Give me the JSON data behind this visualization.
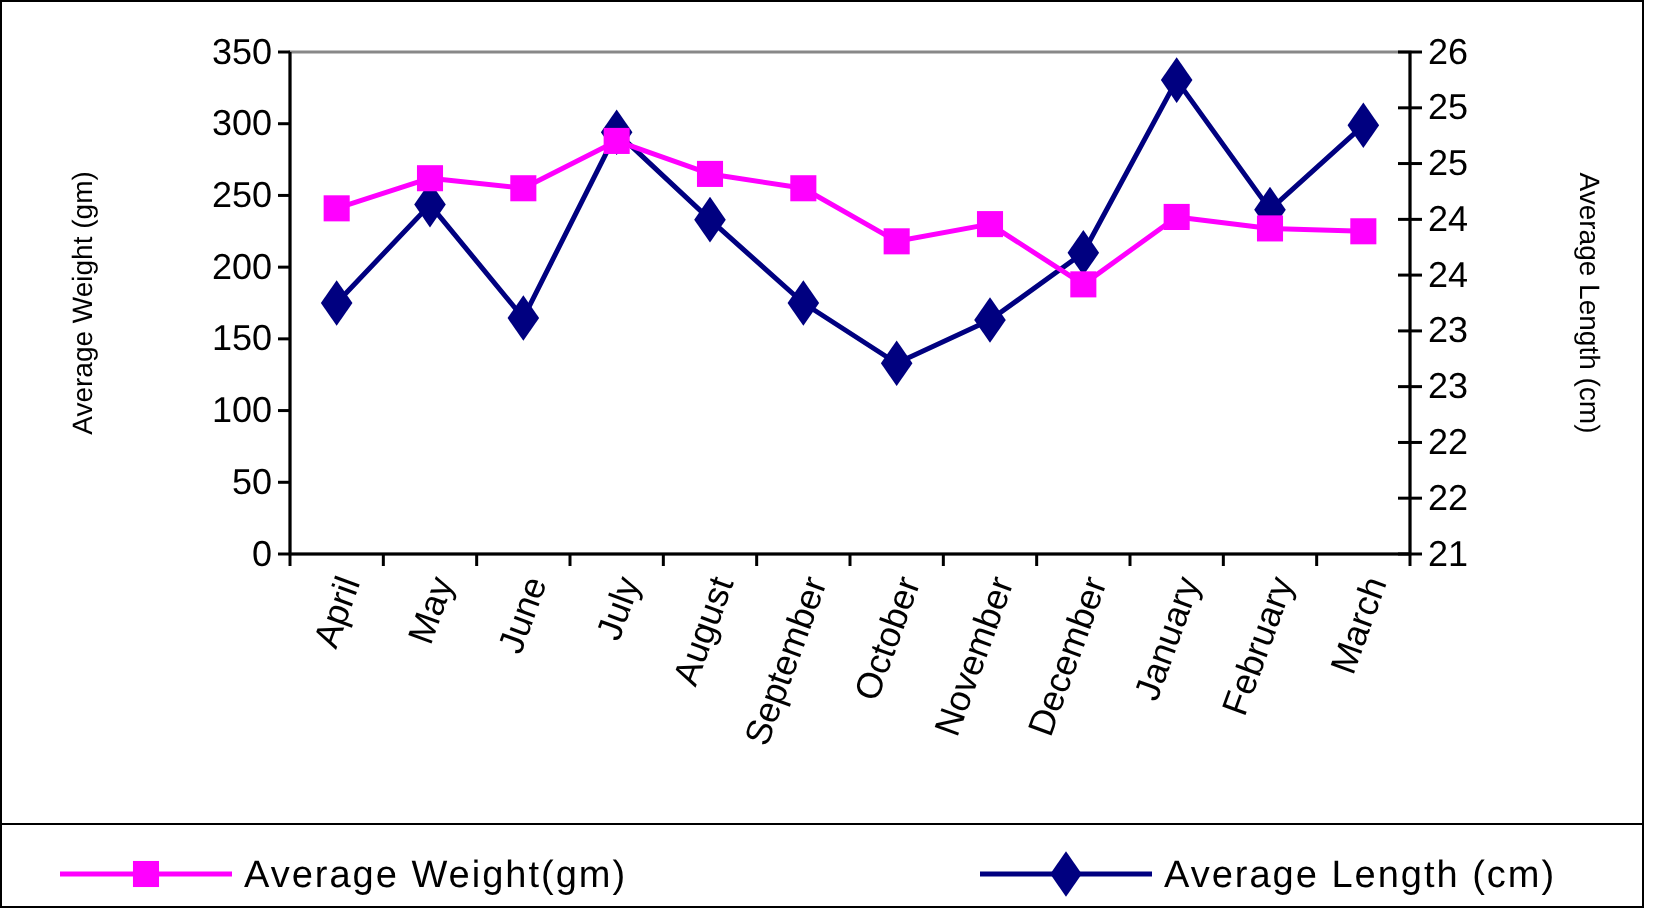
{
  "chart_data": {
    "type": "line",
    "ylabel": "Average Weight (gm)",
    "y2label": "Average Length (cm)",
    "categories": [
      "April",
      "May",
      "June",
      "July",
      "August",
      "September",
      "October",
      "November",
      "December",
      "January",
      "February",
      "March"
    ],
    "series": [
      {
        "name": "Average Weight(gm)",
        "color": "#ff00ff",
        "marker": "square",
        "values": [
          241,
          262,
          255,
          288,
          265,
          255,
          218,
          230,
          188,
          235,
          227,
          225
        ]
      },
      {
        "name": "Average Length (cm)",
        "color": "#000080",
        "marker": "diamond",
        "axis": "y2",
        "values": [
          23.5,
          24.48,
          23.35,
          25.2,
          24.33,
          23.5,
          22.9,
          23.33,
          24.0,
          25.72,
          24.43,
          25.27
        ]
      }
    ],
    "ylim": [
      0,
      350
    ],
    "yticks": [
      0,
      50,
      100,
      150,
      200,
      250,
      300,
      350
    ],
    "y2lim": [
      21,
      26
    ],
    "y2ticks": [
      21,
      {
        "value": 21.556,
        "label": "22"
      },
      {
        "value": 22.111,
        "label": "22"
      },
      {
        "value": 22.667,
        "label": "23"
      },
      {
        "value": 23.222,
        "label": "23"
      },
      {
        "value": 23.778,
        "label": "24"
      },
      {
        "value": 24.333,
        "label": "24"
      },
      {
        "value": 24.889,
        "label": "25"
      },
      {
        "value": 25.444,
        "label": "25"
      },
      26
    ],
    "grid": false,
    "legend": "bottom"
  }
}
